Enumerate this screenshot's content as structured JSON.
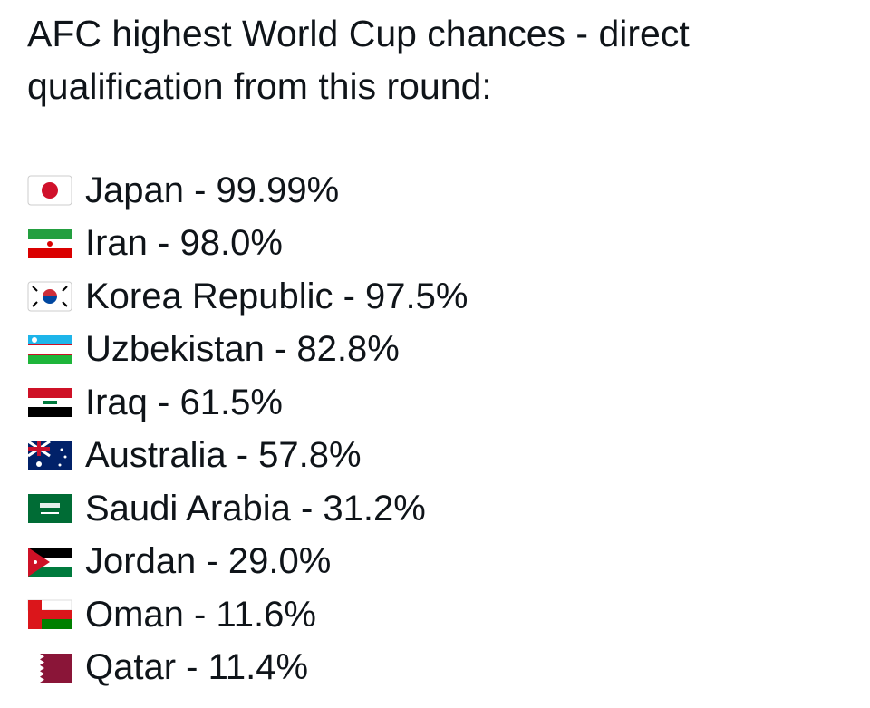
{
  "post": {
    "title": "AFC highest World Cup chances - direct qualification from this round:",
    "items": [
      "Japan - 99.99%",
      "Iran - 98.0%",
      "Korea Republic - 97.5%",
      "Uzbekistan - 82.8%",
      "Iraq - 61.5%",
      "Australia - 57.8%",
      "Saudi Arabia - 31.2%",
      "Jordan - 29.0%",
      "Oman - 11.6%",
      "Qatar - 11.4%"
    ]
  }
}
